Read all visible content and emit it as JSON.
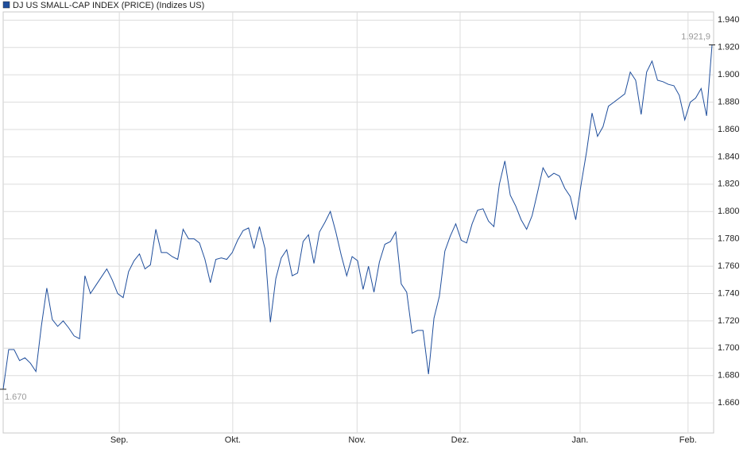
{
  "chart_data": {
    "type": "line",
    "series": [
      {
        "name": "DJ US SMALL-CAP INDEX (PRICE) (Indizes US)",
        "color": "#1f4e9c",
        "values": [
          1670,
          1699,
          1699,
          1691,
          1693,
          1689,
          1683,
          1716,
          1744,
          1721,
          1716,
          1720,
          1715,
          1709,
          1707,
          1753,
          1740,
          1746,
          1752,
          1758,
          1750,
          1740,
          1737,
          1756,
          1764,
          1769,
          1758,
          1761,
          1787,
          1770,
          1770,
          1767,
          1765,
          1787,
          1780,
          1780,
          1777,
          1765,
          1748,
          1765,
          1766,
          1765,
          1770,
          1779,
          1786,
          1788,
          1773,
          1789,
          1773,
          1719,
          1751,
          1766,
          1772,
          1753,
          1755,
          1778,
          1783,
          1762,
          1785,
          1792,
          1800,
          1785,
          1768,
          1753,
          1767,
          1764,
          1743,
          1760,
          1741,
          1763,
          1776,
          1778,
          1785,
          1747,
          1741,
          1711,
          1713,
          1713,
          1681,
          1722,
          1738,
          1771,
          1782,
          1791,
          1779,
          1777,
          1791,
          1801,
          1802,
          1793,
          1789,
          1820,
          1837,
          1812,
          1804,
          1794,
          1787,
          1797,
          1814,
          1832,
          1825,
          1828,
          1826,
          1817,
          1811,
          1794,
          1820,
          1844,
          1872,
          1855,
          1862,
          1877,
          1880,
          1883,
          1886,
          1902,
          1896,
          1871,
          1902,
          1910,
          1896,
          1895,
          1893,
          1892,
          1885,
          1867,
          1880,
          1883,
          1890,
          1870,
          1921.9
        ],
        "value_labels": [
          "1.670",
          null,
          null,
          null,
          null,
          null,
          null,
          null,
          null,
          null,
          null,
          null,
          null,
          null,
          null,
          null,
          null,
          null,
          null,
          null,
          null,
          null,
          null,
          null,
          null,
          null,
          null,
          null,
          null,
          null,
          null,
          null,
          null,
          null,
          null,
          null,
          null,
          null,
          null,
          null,
          null,
          null,
          null,
          null,
          null,
          null,
          null,
          null,
          null,
          null,
          null,
          null,
          null,
          null,
          null,
          null,
          null,
          null,
          null,
          null,
          null,
          null,
          null,
          null,
          null,
          null,
          null,
          null,
          null,
          null,
          null,
          null,
          null,
          null,
          null,
          null,
          null,
          null,
          null,
          null,
          null,
          null,
          null,
          null,
          null,
          null,
          null,
          null,
          null,
          null,
          null,
          null,
          null,
          null,
          null,
          null,
          null,
          null,
          null,
          null,
          null,
          null,
          null,
          null,
          null,
          null,
          null,
          null,
          null,
          null,
          null,
          null,
          null,
          null,
          null,
          null,
          null,
          null,
          null,
          null,
          null,
          null,
          null,
          null,
          null,
          null,
          null,
          null,
          null,
          null,
          "1.921,9"
        ]
      }
    ],
    "xlim": [
      0,
      130
    ],
    "xticks": [
      {
        "value": 21.3,
        "label": "Sep."
      },
      {
        "value": 42.1,
        "label": "Okt."
      },
      {
        "value": 64.9,
        "label": "Nov."
      },
      {
        "value": 83.8,
        "label": "Dez."
      },
      {
        "value": 105.8,
        "label": "Jan."
      },
      {
        "value": 125.6,
        "label": "Feb."
      }
    ],
    "ylim": [
      1638,
      1946
    ],
    "yticks": [
      {
        "value": 1660,
        "label": "1.660"
      },
      {
        "value": 1680,
        "label": "1.680"
      },
      {
        "value": 1700,
        "label": "1.700"
      },
      {
        "value": 1720,
        "label": "1.720"
      },
      {
        "value": 1740,
        "label": "1.740"
      },
      {
        "value": 1760,
        "label": "1.760"
      },
      {
        "value": 1780,
        "label": "1.780"
      },
      {
        "value": 1800,
        "label": "1.800"
      },
      {
        "value": 1820,
        "label": "1.820"
      },
      {
        "value": 1840,
        "label": "1.840"
      },
      {
        "value": 1860,
        "label": "1.860"
      },
      {
        "value": 1880,
        "label": "1.880"
      },
      {
        "value": 1900,
        "label": "1.900"
      },
      {
        "value": 1920,
        "label": "1.920"
      },
      {
        "value": 1940,
        "label": "1.940"
      }
    ],
    "grid": true
  }
}
